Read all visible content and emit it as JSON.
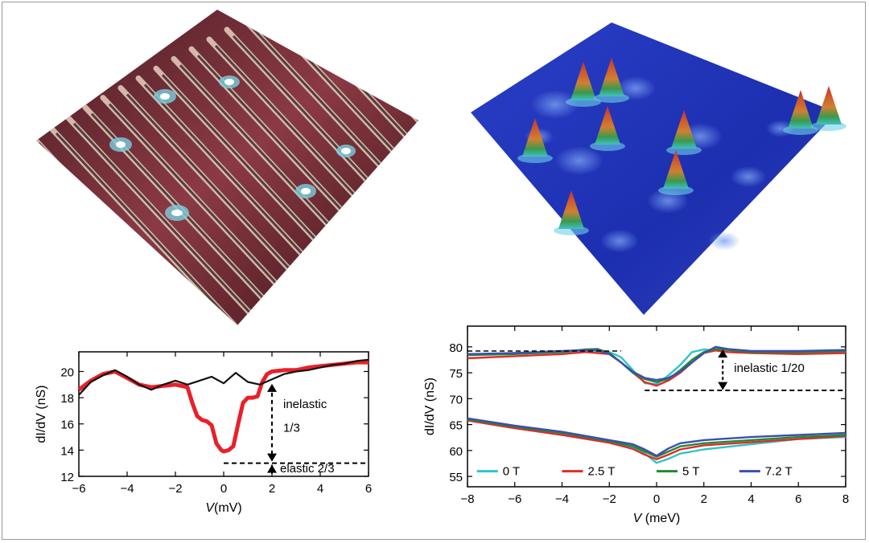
{
  "colors": {
    "red_trace": "#e8202a",
    "black_trace": "#111111",
    "series_0T": "#2cc6c6",
    "series_2_5T": "#e22a2a",
    "series_5T": "#1f8a2e",
    "series_7_2T": "#3a4fb0",
    "stripe_dark": "#6a2830",
    "stripe_light": "#e8d0c0",
    "surface_blue": "#1c2fb0",
    "peak_red": "#c8342a",
    "peak_green": "#3a9a4a"
  },
  "chart_data": [
    {
      "type": "line",
      "panel": "bottom-left",
      "xlabel_italic": "V",
      "xlabel_unit": "(mV)",
      "ylabel": "dI/dV (nS)",
      "xlim": [
        -6,
        6
      ],
      "ylim": [
        12,
        21.5
      ],
      "xticks": [
        "−6",
        "−4",
        "−2",
        "0",
        "2",
        "4",
        "6"
      ],
      "xtick_values": [
        -6,
        -4,
        -2,
        0,
        2,
        4,
        6
      ],
      "yticks": [
        "12",
        "14",
        "16",
        "18",
        "20"
      ],
      "ytick_values": [
        12,
        14,
        16,
        18,
        20
      ],
      "series": [
        {
          "color": "#e8202a",
          "x": [
            -6,
            -5.5,
            -5,
            -4.5,
            -4,
            -3.5,
            -3,
            -2.5,
            -2,
            -1.5,
            -1.3,
            -1.1,
            -0.9,
            -0.7,
            -0.5,
            -0.3,
            -0.1,
            0,
            0.2,
            0.4,
            0.6,
            0.8,
            1.0,
            1.2,
            1.4,
            1.6,
            1.8,
            2,
            2.5,
            3,
            3.5,
            4,
            4.5,
            5,
            5.5,
            6
          ],
          "y": [
            18.6,
            19.3,
            19.8,
            20.0,
            19.5,
            19.0,
            18.8,
            18.9,
            19.0,
            18.8,
            17.6,
            16.6,
            16.3,
            16.2,
            15.9,
            14.5,
            14.0,
            13.9,
            14.0,
            14.3,
            16.0,
            17.6,
            18.0,
            18.0,
            18.1,
            19.2,
            19.8,
            20.0,
            20.1,
            20.1,
            20.3,
            20.4,
            20.5,
            20.6,
            20.7,
            20.7
          ]
        },
        {
          "color": "#111111",
          "x": [
            -6,
            -5.5,
            -5,
            -4.5,
            -4,
            -3.5,
            -3,
            -2.5,
            -2,
            -1.5,
            -1,
            -0.5,
            0,
            0.5,
            1,
            1.5,
            2,
            2.5,
            3,
            3.5,
            4,
            4.5,
            5,
            5.5,
            6
          ],
          "y": [
            18.2,
            19.2,
            19.7,
            20.1,
            19.6,
            19.0,
            18.6,
            19.0,
            19.3,
            19.0,
            19.3,
            19.6,
            19.1,
            19.9,
            19.2,
            19.0,
            19.4,
            19.8,
            20.0,
            20.1,
            20.3,
            20.5,
            20.6,
            20.8,
            20.9
          ]
        }
      ],
      "annotations": {
        "inelastic": "inelastic",
        "inelastic_fraction": "1/3",
        "elastic": "elastic 2/3",
        "arrow_x": 2,
        "inelastic_from": 19.3,
        "inelastic_to": 13.0,
        "baseline": 13.0,
        "baseline_x_from": 0,
        "baseline_x_to": 6
      }
    },
    {
      "type": "line",
      "panel": "bottom-right",
      "xlabel_italic": "V",
      "xlabel_unit": " (meV)",
      "ylabel": "dI/dV (nS)",
      "xlim": [
        -8,
        8
      ],
      "ylim": [
        53,
        84
      ],
      "xticks": [
        "−8",
        "−6",
        "−4",
        "−2",
        "0",
        "2",
        "4",
        "6",
        "8"
      ],
      "xtick_values": [
        -8,
        -6,
        -4,
        -2,
        0,
        2,
        4,
        6,
        8
      ],
      "yticks": [
        "55",
        "60",
        "65",
        "70",
        "75",
        "80"
      ],
      "ytick_values": [
        55,
        60,
        65,
        70,
        75,
        80
      ],
      "series": [
        {
          "name": "0 T",
          "color": "#2cc6c6",
          "upper": {
            "x": [
              -8,
              -6,
              -4,
              -3,
              -2,
              -1.5,
              -1,
              -0.5,
              0,
              0.5,
              1,
              1.5,
              2,
              2.5,
              3,
              4,
              6,
              8
            ],
            "y": [
              78.5,
              78.8,
              79.0,
              79.2,
              79.0,
              78.0,
              75.5,
              73.0,
              72.8,
              74.5,
              76.5,
              79.0,
              79.5,
              79.3,
              79.0,
              78.9,
              78.8,
              78.8
            ]
          },
          "lower": {
            "x": [
              -8,
              -6,
              -4,
              -2,
              -1,
              -0.5,
              0,
              0.5,
              1,
              2,
              4,
              6,
              8
            ],
            "y": [
              66.0,
              64.5,
              63.2,
              61.6,
              60.5,
              59.4,
              57.6,
              58.4,
              59.4,
              60.2,
              61.2,
              62.2,
              62.6
            ]
          }
        },
        {
          "name": "2.5 T",
          "color": "#e22a2a",
          "upper": {
            "x": [
              -8,
              -6,
              -4,
              -3,
              -2,
              -1.5,
              -1,
              -0.5,
              0,
              0.5,
              1,
              1.5,
              2,
              2.5,
              3,
              4,
              6,
              8
            ],
            "y": [
              77.8,
              78.2,
              78.6,
              79.0,
              78.6,
              77.0,
              75.0,
              73.2,
              72.5,
              73.5,
              75.0,
              77.0,
              78.8,
              79.3,
              79.0,
              78.8,
              78.6,
              78.8
            ]
          },
          "lower": {
            "x": [
              -8,
              -6,
              -4,
              -2,
              -1,
              -0.5,
              0,
              0.5,
              1,
              2,
              4,
              6,
              8
            ],
            "y": [
              65.8,
              64.3,
              63.0,
              61.5,
              60.3,
              59.2,
              58.3,
              59.2,
              60.2,
              61.0,
              61.6,
              62.2,
              62.8
            ]
          }
        },
        {
          "name": "5 T",
          "color": "#1f8a2e",
          "upper": {
            "x": [
              -8,
              -6,
              -4,
              -3,
              -2.5,
              -2,
              -1.5,
              -1,
              -0.5,
              0,
              0.5,
              1,
              1.5,
              2,
              2.5,
              3,
              4,
              6,
              8
            ],
            "y": [
              78.4,
              78.6,
              79.0,
              79.5,
              79.6,
              78.8,
              77.0,
              75.0,
              73.8,
              73.2,
              73.8,
              75.5,
              77.5,
              79.0,
              79.6,
              79.4,
              79.0,
              79.0,
              79.2
            ]
          },
          "lower": {
            "x": [
              -8,
              -6,
              -4,
              -2,
              -1,
              -0.5,
              0,
              0.5,
              1,
              2,
              4,
              6,
              8
            ],
            "y": [
              66.0,
              64.6,
              63.4,
              61.8,
              60.8,
              59.8,
              58.8,
              59.8,
              60.8,
              61.4,
              62.0,
              62.6,
              63.0
            ]
          }
        },
        {
          "name": "7.2 T",
          "color": "#3a4fb0",
          "upper": {
            "x": [
              -8,
              -6,
              -4,
              -3,
              -2.5,
              -2,
              -1.5,
              -1,
              -0.5,
              0,
              0.5,
              1,
              1.5,
              2,
              2.5,
              3,
              4,
              6,
              8
            ],
            "y": [
              78.6,
              78.8,
              79.2,
              79.4,
              79.4,
              78.6,
              77.0,
              75.2,
              74.0,
              73.6,
              74.0,
              75.2,
              77.0,
              78.8,
              80.0,
              79.6,
              79.2,
              79.2,
              79.4
            ]
          },
          "lower": {
            "x": [
              -8,
              -6,
              -4,
              -2,
              -1,
              -0.5,
              0,
              0.5,
              1,
              2,
              4,
              6,
              8
            ],
            "y": [
              66.2,
              64.8,
              63.6,
              62.0,
              61.2,
              60.2,
              59.0,
              60.4,
              61.4,
              62.0,
              62.6,
              63.0,
              63.4
            ]
          }
        }
      ],
      "annotations": {
        "inelastic": "inelastic 1/20",
        "arrow_x": 2.8,
        "arrow_from": 79.8,
        "arrow_to": 71.5,
        "baseline": 71.6,
        "baseline_x_from": -0.5,
        "baseline_x_to": 8
      }
    }
  ],
  "legend": [
    "0 T",
    "2.5 T",
    "5 T",
    "7.2 T"
  ]
}
